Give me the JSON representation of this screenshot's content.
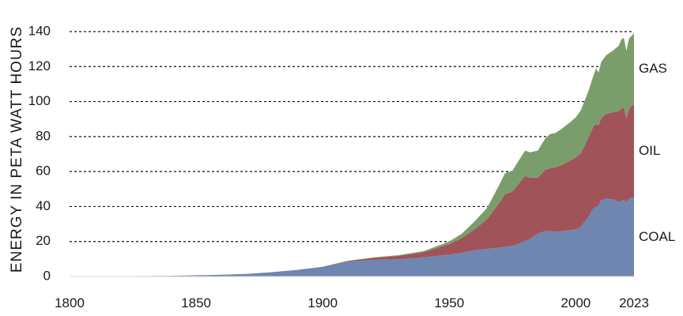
{
  "chart_data": {
    "type": "area",
    "stacked": true,
    "ylabel": "ENERGY IN PETA WATT HOURS",
    "xlabel": "",
    "ylim": [
      0,
      140
    ],
    "xlim": [
      1800,
      2023
    ],
    "y_ticks": [
      0,
      20,
      40,
      60,
      80,
      100,
      120,
      140
    ],
    "x_ticks": [
      1800,
      1850,
      1900,
      1950,
      2000,
      2023
    ],
    "grid": "dotted horizontal lines at y ticks 20-140",
    "x": [
      1800,
      1820,
      1840,
      1860,
      1870,
      1880,
      1890,
      1900,
      1910,
      1920,
      1930,
      1940,
      1950,
      1955,
      1960,
      1965,
      1970,
      1972,
      1975,
      1978,
      1980,
      1982,
      1985,
      1988,
      1990,
      1992,
      1995,
      1998,
      2000,
      2002,
      2005,
      2007,
      2008,
      2009,
      2010,
      2012,
      2015,
      2017,
      2018,
      2019,
      2020,
      2021,
      2022,
      2023
    ],
    "series": [
      {
        "name": "COAL",
        "color": "#6f86b0",
        "values": [
          0.1,
          0.2,
          0.4,
          1.0,
          1.5,
          2.5,
          3.8,
          5.5,
          8.5,
          9.5,
          9.8,
          11.0,
          12.5,
          13.5,
          15.0,
          15.8,
          16.5,
          17.0,
          17.5,
          19.0,
          20.5,
          21.5,
          24.5,
          26.0,
          26.0,
          25.5,
          26.0,
          26.5,
          27.0,
          28.5,
          34.0,
          39.0,
          40.0,
          40.5,
          43.5,
          44.5,
          44.0,
          42.5,
          43.5,
          44.0,
          42.5,
          44.5,
          45.0,
          45.0
        ]
      },
      {
        "name": "OIL",
        "color": "#a0545a",
        "values": [
          0,
          0,
          0,
          0,
          0,
          0,
          0,
          0.1,
          0.4,
          1.2,
          2.0,
          3.0,
          6.0,
          8.5,
          12.0,
          17.0,
          26.0,
          30.0,
          31.0,
          35.0,
          37.0,
          35.0,
          32.0,
          35.0,
          36.0,
          37.0,
          38.0,
          40.0,
          41.0,
          42.0,
          45.5,
          47.0,
          47.0,
          46.0,
          47.0,
          48.5,
          50.0,
          52.0,
          52.5,
          52.5,
          48.0,
          51.0,
          52.5,
          53.5
        ]
      },
      {
        "name": "GAS",
        "color": "#7a9e6b",
        "values": [
          0,
          0,
          0,
          0,
          0,
          0,
          0,
          0,
          0.1,
          0.2,
          0.4,
          0.6,
          1.5,
          2.5,
          4.5,
          6.5,
          10.5,
          12.0,
          12.0,
          13.5,
          14.5,
          14.5,
          15.5,
          18.0,
          19.5,
          19.5,
          21.0,
          22.0,
          23.0,
          24.5,
          26.5,
          29.0,
          32.0,
          30.0,
          32.0,
          33.5,
          35.5,
          37.5,
          39.5,
          40.0,
          38.5,
          40.5,
          40.0,
          40.5
        ]
      }
    ]
  }
}
